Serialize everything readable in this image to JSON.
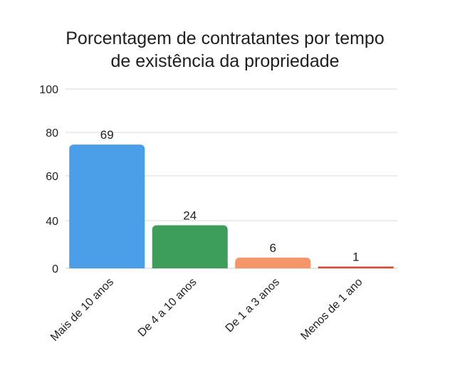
{
  "chart_data": {
    "type": "bar",
    "title_line1": "Porcentagem de contratantes por tempo",
    "title_line2": "de existência da propriedade",
    "categories": [
      "Mais de 10 anos",
      "De 4 a 10 anos",
      "De 1 a 3 anos",
      "Menos de 1 ano"
    ],
    "values": [
      69,
      24,
      6,
      1
    ],
    "bar_colors": [
      "#4A9FE8",
      "#3C9E5A",
      "#F4956A",
      "#D9472F"
    ],
    "yticks": [
      0,
      40,
      60,
      80,
      100
    ],
    "ylim": [
      0,
      100
    ],
    "grid": true,
    "legend": false
  }
}
